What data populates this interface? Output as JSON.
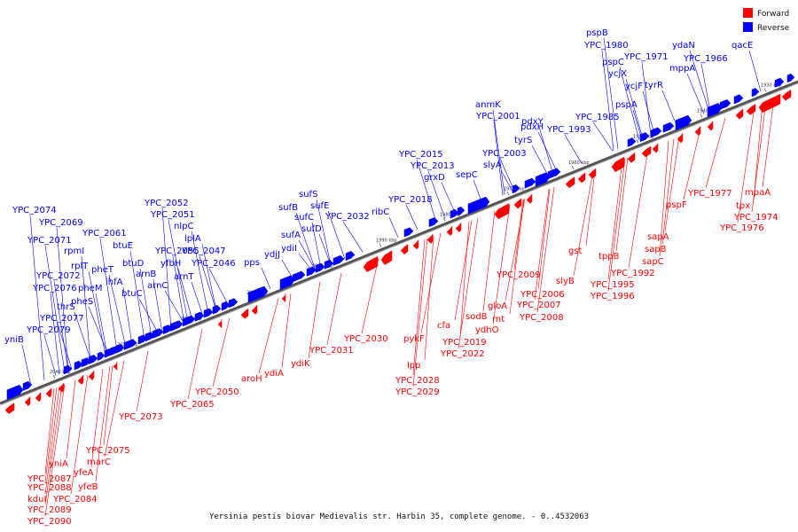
{
  "colors": {
    "forward": "#ff0000",
    "reverse": "#0000ff",
    "axis": "#777777"
  },
  "legend": [
    {
      "label": "Forward",
      "color": "#ff0000"
    },
    {
      "label": "Reverse",
      "color": "#0000ff"
    }
  ],
  "caption": "Yersinia pestis biovar Medievalis str. Harbin 35, complete genome. - 0..4532063",
  "ticks": [
    "2040 kbp",
    "2030 kbp",
    "2020 kbp",
    "2010 kbp",
    "2000 kbp",
    "1990 kbp",
    "1980 kbp",
    "1970 kbp",
    "1960 kbp",
    "1950 kbp",
    "1940 kbp",
    "1930 kbp"
  ],
  "reverse_genes": [
    "yniB",
    "YPC_2079",
    "YPC_2077",
    "thrS",
    "pheS",
    "YPC_2076",
    "pheM",
    "YPC_2072",
    "rplT",
    "YPC_2071",
    "rpmI",
    "YPC_2069",
    "YPC_2074",
    "pheT",
    "btuC",
    "ihfA",
    "btuD",
    "btuE",
    "YPC_2061",
    "arnC",
    "arnB",
    "YPC_2055",
    "yfbH",
    "nlpC",
    "YPC_2051",
    "YPC_2052",
    "arnT",
    "lplA",
    "YPC_2047",
    "YPC_2046",
    "pps",
    "ydjJ",
    "ydiI",
    "sufA",
    "sufB",
    "sufC",
    "sufD",
    "sufS",
    "sufE",
    "YPC_2032",
    "ribC",
    "YPC_2018",
    "grxD",
    "YPC_2013",
    "YPC_2015",
    "sepC",
    "slyA",
    "YPC_2003",
    "tyrS",
    "pdxH",
    "YPC_2001",
    "anmK",
    "pdxY",
    "YPC_1993",
    "YPC_1985",
    "pspA",
    "ycjF",
    "tyrR",
    "ycjX",
    "pspC",
    "YPC_1971",
    "YPC_1980",
    "pspB",
    "mppA",
    "ydaN",
    "YPC_1966",
    "qacE"
  ],
  "forward_genes": [
    "YPC_2087",
    "YPC_2088",
    "kduI",
    "YPC_2089",
    "YPC_2090",
    "yniA",
    "yfeA",
    "yfeB",
    "YPC_2084",
    "marC",
    "YPC_2075",
    "YPC_2073",
    "YPC_2065",
    "YPC_2050",
    "aroH",
    "ydiA",
    "ydiK",
    "YPC_2031",
    "YPC_2030",
    "pykF",
    "lpp",
    "YPC_2028",
    "YPC_2029",
    "cfa",
    "YPC_2022",
    "YPC_2019",
    "sodB",
    "rnt",
    "ydhO",
    "gloA",
    "YPC_2009",
    "YPC_2006",
    "YPC_2007",
    "YPC_2008",
    "slyB",
    "gst",
    "tppB",
    "YPC_1995",
    "YPC_1996",
    "YPC_1992",
    "sapC",
    "sapB",
    "sapA",
    "pspF",
    "YPC_1977",
    "tpx",
    "mpaA",
    "YPC_1974",
    "YPC_1976"
  ]
}
